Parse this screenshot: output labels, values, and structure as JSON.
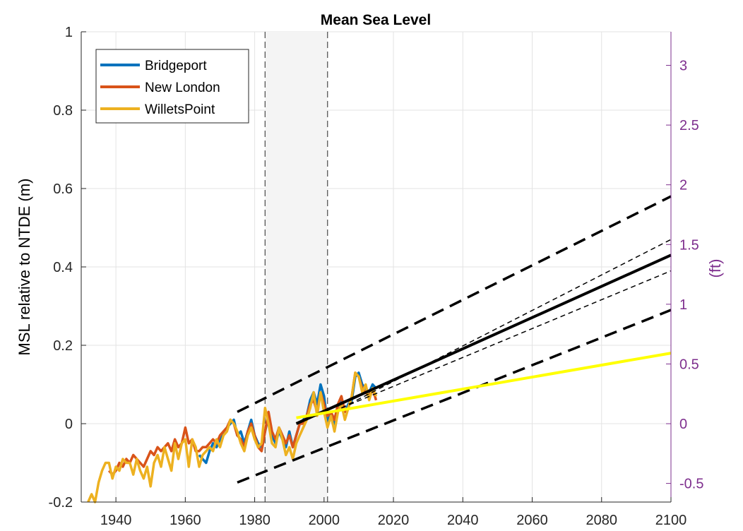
{
  "chart_data": {
    "type": "line",
    "title": "Mean Sea Level",
    "ylabel": "MSL relative to NTDE (m)",
    "ylabel_right": "(ft)",
    "xlim": [
      1930,
      2100
    ],
    "ylim": [
      -0.2,
      1
    ],
    "ylim_right_ft": [
      -0.656,
      3.281
    ],
    "x_ticks": [
      1940,
      1960,
      1980,
      2000,
      2020,
      2040,
      2060,
      2080,
      2100
    ],
    "y_ticks": [
      -0.2,
      0,
      0.2,
      0.4,
      0.6,
      0.8,
      1
    ],
    "y_tick_labels": [
      "-0.2",
      "0",
      "0.2",
      "0.4",
      "0.6",
      "0.8",
      "1"
    ],
    "y_right_ticks": [
      -0.5,
      0,
      0.5,
      1,
      1.5,
      2,
      2.5,
      3
    ],
    "y_right_tick_labels": [
      "-0.5",
      "0",
      "0.5",
      "1",
      "1.5",
      "2",
      "2.5",
      "3"
    ],
    "grid": true,
    "legend_position": "top-left",
    "epoch_band": [
      1983,
      2001
    ],
    "colors": {
      "Bridgeport": "#0072BD",
      "New London": "#D95319",
      "WilletsPoint": "#EDB120",
      "projection": "#000000",
      "linear_trend": "#FFFF00",
      "band": "#F4F4F4",
      "right_axis": "#7E2F8E"
    },
    "series": [
      {
        "name": "Bridgeport",
        "x": [
          1964,
          1965,
          1966,
          1967,
          1968,
          1969,
          1970,
          1971,
          1972,
          1973,
          1974,
          1975,
          1976,
          1977,
          1978,
          1979,
          1980,
          1981,
          1982,
          1983,
          1984,
          1985,
          1986,
          1987,
          1988,
          1989,
          1990,
          1991,
          1992,
          1993,
          1994,
          1995,
          1996,
          1997,
          1998,
          1999,
          2000,
          2001,
          2002,
          2003,
          2004,
          2005,
          2006,
          2007,
          2008,
          2009,
          2010,
          2011,
          2012,
          2013,
          2014,
          2015
        ],
        "y": [
          -0.08,
          -0.09,
          -0.1,
          -0.07,
          -0.05,
          -0.06,
          -0.04,
          -0.02,
          -0.01,
          0.0,
          0.01,
          -0.03,
          -0.02,
          -0.05,
          -0.02,
          0.01,
          -0.03,
          -0.05,
          -0.06,
          -0.02,
          0.02,
          -0.03,
          -0.05,
          -0.02,
          -0.04,
          -0.06,
          -0.02,
          -0.06,
          -0.03,
          0.0,
          0.01,
          0.02,
          0.06,
          0.08,
          0.05,
          0.1,
          0.07,
          0.0,
          0.03,
          -0.01,
          0.04,
          0.06,
          0.03,
          0.05,
          0.06,
          0.12,
          0.13,
          0.1,
          0.09,
          0.08,
          0.1,
          0.09
        ]
      },
      {
        "name": "New London",
        "x": [
          1938,
          1939,
          1940,
          1941,
          1942,
          1943,
          1944,
          1945,
          1946,
          1947,
          1948,
          1949,
          1950,
          1951,
          1952,
          1953,
          1954,
          1955,
          1956,
          1957,
          1958,
          1959,
          1960,
          1961,
          1962,
          1963,
          1964,
          1965,
          1966,
          1967,
          1968,
          1969,
          1970,
          1971,
          1972,
          1973,
          1974,
          1975,
          1976,
          1977,
          1978,
          1979,
          1980,
          1981,
          1982,
          1983,
          1984,
          1985,
          1986,
          1987,
          1988,
          1989,
          1990,
          1991,
          1992,
          1993,
          1994,
          1995,
          1996,
          1997,
          1998,
          1999,
          2000,
          2001,
          2002,
          2003,
          2004,
          2005,
          2006,
          2007,
          2008,
          2009,
          2010,
          2011,
          2012,
          2013,
          2014,
          2015
        ],
        "y": [
          -0.12,
          -0.13,
          -0.12,
          -0.1,
          -0.11,
          -0.09,
          -0.1,
          -0.08,
          -0.09,
          -0.1,
          -0.11,
          -0.09,
          -0.07,
          -0.08,
          -0.06,
          -0.07,
          -0.06,
          -0.05,
          -0.07,
          -0.04,
          -0.06,
          -0.05,
          -0.01,
          -0.05,
          -0.04,
          -0.07,
          -0.07,
          -0.06,
          -0.06,
          -0.05,
          -0.04,
          -0.05,
          -0.03,
          -0.02,
          -0.01,
          0.01,
          0.0,
          -0.03,
          -0.04,
          -0.06,
          -0.02,
          0.0,
          -0.03,
          -0.06,
          -0.07,
          -0.02,
          0.03,
          -0.02,
          -0.04,
          -0.01,
          -0.03,
          -0.05,
          -0.03,
          -0.06,
          -0.03,
          0.0,
          0.0,
          0.02,
          0.05,
          0.06,
          0.03,
          0.08,
          0.05,
          0.02,
          0.03,
          0.01,
          0.05,
          0.07,
          0.03,
          0.04,
          0.07,
          0.13,
          0.12,
          0.09,
          0.08,
          0.07,
          0.09,
          0.06
        ]
      },
      {
        "name": "WilletsPoint",
        "x": [
          1932,
          1933,
          1934,
          1935,
          1936,
          1937,
          1938,
          1939,
          1940,
          1941,
          1942,
          1943,
          1944,
          1945,
          1946,
          1947,
          1948,
          1949,
          1950,
          1951,
          1952,
          1953,
          1954,
          1955,
          1956,
          1957,
          1958,
          1959,
          1960,
          1961,
          1962,
          1963,
          1964,
          1965,
          1966,
          1967,
          1968,
          1969,
          1970,
          1971,
          1972,
          1973,
          1974,
          1975,
          1976,
          1977,
          1978,
          1979,
          1980,
          1981,
          1982,
          1983,
          1984,
          1985,
          1986,
          1987,
          1988,
          1989,
          1990,
          1991,
          1992,
          1993,
          1994,
          1995,
          1996,
          1997,
          1998,
          1999,
          2000,
          2001,
          2002,
          2003,
          2004,
          2005,
          2006,
          2007,
          2008,
          2009,
          2010,
          2011,
          2012,
          2013,
          2014,
          2015
        ],
        "y": [
          -0.2,
          -0.18,
          -0.2,
          -0.15,
          -0.12,
          -0.1,
          -0.1,
          -0.14,
          -0.11,
          -0.12,
          -0.09,
          -0.1,
          -0.1,
          -0.13,
          -0.09,
          -0.12,
          -0.14,
          -0.11,
          -0.16,
          -0.1,
          -0.08,
          -0.11,
          -0.06,
          -0.09,
          -0.12,
          -0.05,
          -0.09,
          -0.05,
          -0.04,
          -0.11,
          -0.04,
          -0.06,
          -0.11,
          -0.08,
          -0.07,
          -0.06,
          -0.07,
          -0.04,
          -0.06,
          -0.03,
          -0.02,
          0.01,
          0.0,
          -0.02,
          -0.05,
          -0.07,
          -0.03,
          -0.01,
          -0.04,
          -0.06,
          -0.05,
          0.04,
          0.0,
          -0.05,
          -0.06,
          -0.01,
          -0.04,
          -0.08,
          -0.06,
          -0.09,
          -0.05,
          -0.03,
          -0.01,
          0.01,
          0.04,
          0.08,
          0.02,
          0.08,
          0.03,
          -0.01,
          0.02,
          -0.02,
          0.03,
          0.05,
          0.01,
          0.04,
          0.07,
          0.13,
          0.12,
          0.08,
          0.1,
          0.06,
          0.09,
          0.07
        ]
      }
    ],
    "projection_central": {
      "x": [
        1992,
        2100
      ],
      "y": [
        0.0,
        0.43
      ]
    },
    "projection_inner_bounds": [
      {
        "x": [
          2005,
          2100
        ],
        "y": [
          0.04,
          0.47
        ]
      },
      {
        "x": [
          2005,
          2100
        ],
        "y": [
          0.04,
          0.39
        ]
      }
    ],
    "projection_outer_bounds": [
      {
        "x": [
          1975,
          2100
        ],
        "y": [
          0.03,
          0.58
        ]
      },
      {
        "x": [
          1975,
          2100
        ],
        "y": [
          -0.15,
          0.29
        ]
      }
    ],
    "linear_trend": {
      "x": [
        1992,
        2100
      ],
      "y": [
        0.015,
        0.18
      ]
    },
    "legend": [
      "Bridgeport",
      "New London",
      "WilletsPoint"
    ]
  }
}
